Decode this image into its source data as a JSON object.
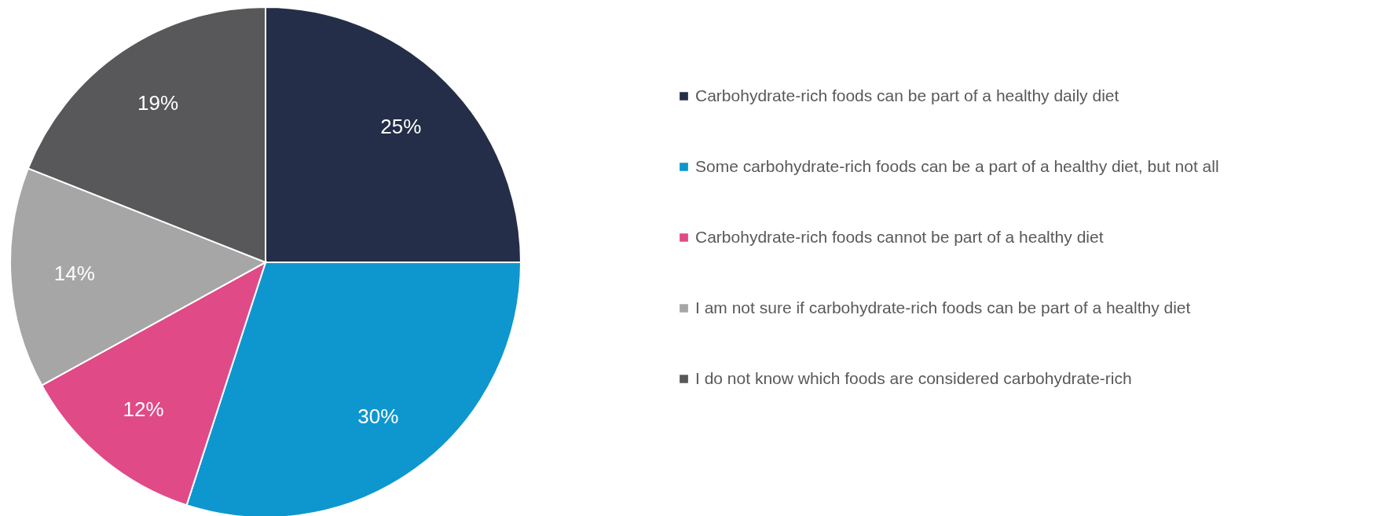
{
  "chart_data": {
    "type": "pie",
    "categories": [
      "Carbohydrate-rich foods can be part of a healthy daily diet",
      "Some carbohydrate-rich foods can be a part of a healthy diet, but not all",
      "Carbohydrate-rich foods cannot be part of a healthy diet",
      "I am not sure if carbohydrate-rich foods can be part of a healthy diet",
      "I do not know which foods are considered carbohydrate-rich"
    ],
    "values": [
      25,
      30,
      12,
      14,
      19
    ],
    "colors": [
      "#252e48",
      "#0e97ce",
      "#e04a87",
      "#a6a6a6",
      "#58585a"
    ],
    "value_labels": [
      "25%",
      "30%",
      "12%",
      "14%",
      "19%"
    ],
    "legend": "right"
  }
}
